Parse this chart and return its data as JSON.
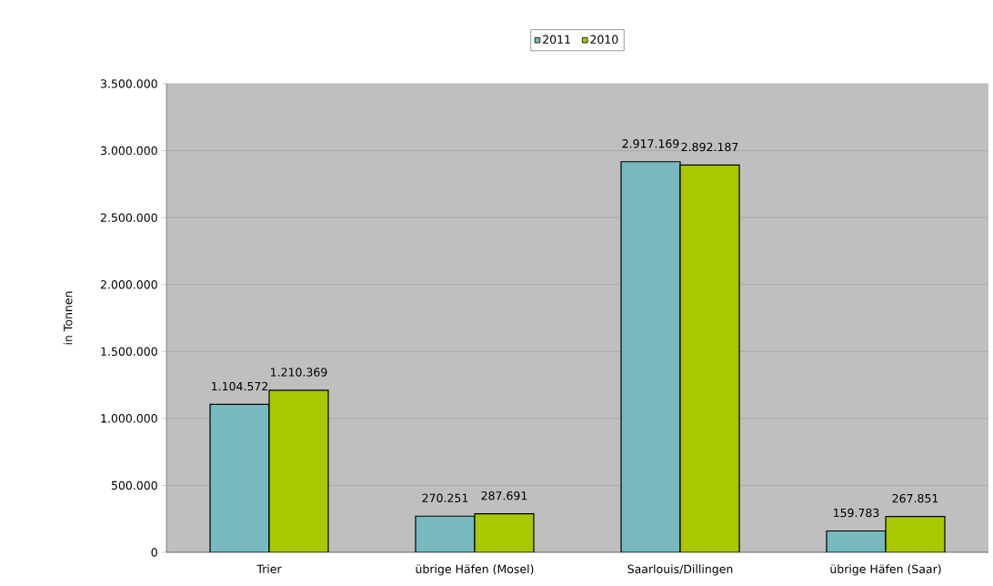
{
  "chart_data": {
    "type": "bar",
    "ylabel": "in Tonnen",
    "categories": [
      "Trier",
      "übrige Häfen (Mosel)",
      "Saarlouis/Dillingen",
      "übrige Häfen (Saar)"
    ],
    "series": [
      {
        "name": "2011",
        "color": "#77b9bf",
        "values": [
          1104572,
          270251,
          2917169,
          159783
        ],
        "value_labels": [
          "1.104.572",
          "270.251",
          "2.917.169",
          "159.783"
        ]
      },
      {
        "name": "2010",
        "color": "#a8c800",
        "values": [
          1210369,
          287691,
          2892187,
          267851
        ],
        "value_labels": [
          "1.210.369",
          "287.691",
          "2.892.187",
          "267.851"
        ]
      }
    ],
    "ylim": [
      0,
      3500000
    ],
    "yticks": [
      {
        "value": 0,
        "label": "0"
      },
      {
        "value": 500000,
        "label": "500.000"
      },
      {
        "value": 1000000,
        "label": "1.000.000"
      },
      {
        "value": 1500000,
        "label": "1.500.000"
      },
      {
        "value": 2000000,
        "label": "2.000.000"
      },
      {
        "value": 2500000,
        "label": "2.500.000"
      },
      {
        "value": 3000000,
        "label": "3.000.000"
      },
      {
        "value": 3500000,
        "label": "3.500.000"
      }
    ],
    "grid": "y",
    "legend": "top"
  }
}
